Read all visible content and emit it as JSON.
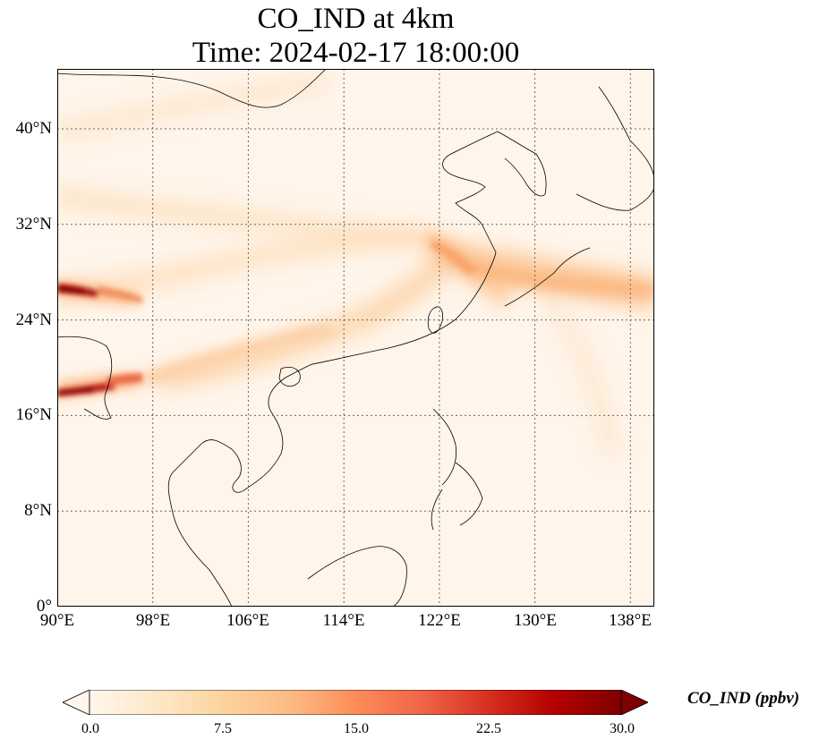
{
  "title": {
    "line1": "CO_IND at 4km",
    "line2": "Time: 2024-02-17 18:00:00"
  },
  "map": {
    "type": "heatmap",
    "lon_range": [
      90,
      140
    ],
    "lat_range": [
      0,
      45
    ],
    "latitude_ticks": [
      "0°",
      "8°N",
      "16°N",
      "24°N",
      "32°N",
      "40°N"
    ],
    "latitude_values": [
      0,
      8,
      16,
      24,
      32,
      40
    ],
    "longitude_ticks": [
      "90°E",
      "98°E",
      "106°E",
      "114°E",
      "122°E",
      "130°E",
      "138°E"
    ],
    "longitude_values": [
      90,
      98,
      106,
      114,
      122,
      130,
      138
    ],
    "gridlines": "dotted",
    "colormap": "OrRd"
  },
  "colorbar": {
    "label": "CO_IND (ppbv)",
    "ticks": [
      "0.0",
      "7.5",
      "15.0",
      "22.5",
      "30.0"
    ],
    "min": 0,
    "max": 30,
    "extend": "both",
    "colors": [
      "#fff7ec",
      "#fee8c8",
      "#fdd49e",
      "#fdbb84",
      "#fc8d59",
      "#ef6548",
      "#d7301f",
      "#b30000",
      "#7f0000"
    ]
  },
  "chart_data": {
    "type": "heatmap",
    "title": "CO_IND at 4km\nTime: 2024-02-17 18:00:00",
    "variable": "CO_IND",
    "units": "ppbv",
    "x_ticks": [
      "90°E",
      "98°E",
      "106°E",
      "114°E",
      "122°E",
      "130°E",
      "138°E"
    ],
    "y_ticks": [
      "0°",
      "8°N",
      "16°N",
      "24°N",
      "32°N",
      "40°N"
    ],
    "xlim": [
      90,
      140
    ],
    "ylim": [
      0,
      45
    ],
    "colorbar_range": [
      0,
      30
    ],
    "high_value_features": [
      {
        "lon_range": [
          90,
          93
        ],
        "lat": 26.5,
        "value": 30
      },
      {
        "lon_range": [
          90,
          95
        ],
        "lat": 17.8,
        "value": 30
      },
      {
        "lon_range": [
          118,
          135
        ],
        "lat_range": [
          26,
          30
        ],
        "value": 8
      }
    ]
  }
}
